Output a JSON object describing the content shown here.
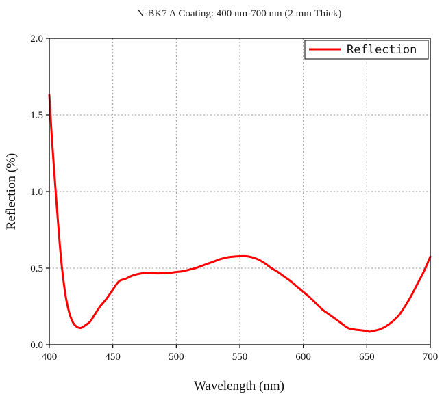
{
  "chart_data": {
    "type": "line",
    "title": "N-BK7 A Coating: 400 nm-700 nm (2 mm Thick)",
    "xlabel": "Wavelength (nm)",
    "ylabel": "Reflection (%)",
    "xlim": [
      400,
      700
    ],
    "ylim": [
      0.0,
      2.0
    ],
    "x_ticks": [
      400,
      450,
      500,
      550,
      600,
      650,
      700
    ],
    "x_tick_labels": [
      "400",
      "450",
      "500",
      "550",
      "600",
      "650",
      "700"
    ],
    "y_ticks": [
      0.0,
      0.5,
      1.0,
      1.5,
      2.0
    ],
    "y_tick_labels": [
      "0.0",
      "0.5",
      "1.0",
      "1.5",
      "2.0"
    ],
    "grid": true,
    "legend_position": "top-right",
    "series": [
      {
        "name": "Reflection",
        "color": "#ff0000",
        "x": [
          400,
          402,
          405,
          408,
          410,
          413,
          416,
          419,
          422,
          425,
          428,
          432,
          436,
          440,
          445,
          450,
          455,
          460,
          465,
          470,
          475,
          480,
          485,
          490,
          495,
          500,
          505,
          510,
          515,
          520,
          525,
          530,
          535,
          540,
          545,
          550,
          555,
          560,
          565,
          570,
          575,
          580,
          585,
          590,
          595,
          600,
          605,
          610,
          615,
          620,
          625,
          630,
          635,
          640,
          645,
          650,
          652,
          655,
          660,
          665,
          670,
          675,
          680,
          685,
          690,
          695,
          700
        ],
        "values": [
          1.63,
          1.35,
          1.0,
          0.68,
          0.5,
          0.31,
          0.2,
          0.14,
          0.115,
          0.11,
          0.125,
          0.15,
          0.2,
          0.25,
          0.3,
          0.36,
          0.415,
          0.43,
          0.45,
          0.462,
          0.468,
          0.468,
          0.466,
          0.468,
          0.47,
          0.475,
          0.48,
          0.49,
          0.5,
          0.515,
          0.53,
          0.545,
          0.56,
          0.57,
          0.575,
          0.578,
          0.578,
          0.57,
          0.555,
          0.53,
          0.5,
          0.475,
          0.445,
          0.415,
          0.38,
          0.345,
          0.31,
          0.27,
          0.23,
          0.2,
          0.17,
          0.14,
          0.11,
          0.1,
          0.095,
          0.09,
          0.085,
          0.09,
          0.1,
          0.12,
          0.15,
          0.19,
          0.25,
          0.32,
          0.4,
          0.48,
          0.575
        ]
      }
    ]
  }
}
